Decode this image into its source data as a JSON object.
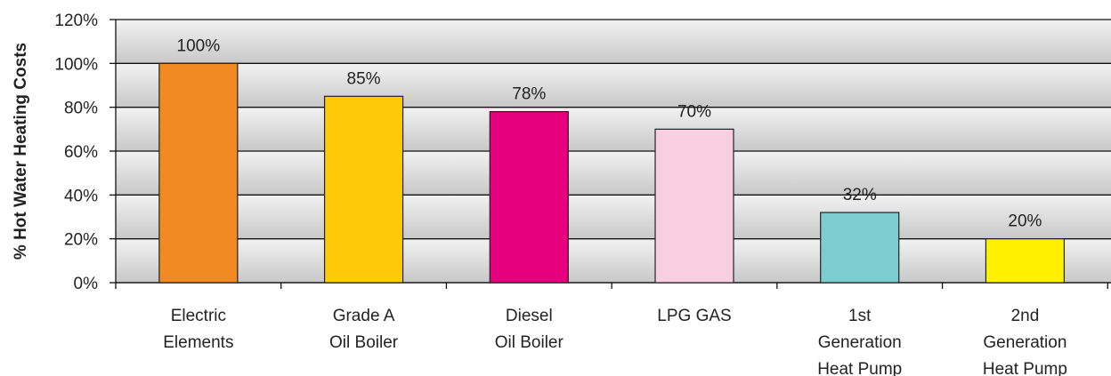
{
  "chart_data": {
    "type": "bar",
    "title": "",
    "xlabel": "",
    "ylabel": "% Hot Water Heating Costs",
    "ylim": [
      0,
      120
    ],
    "yticks": [
      0,
      20,
      40,
      60,
      80,
      100,
      120
    ],
    "ytick_labels": [
      "0%",
      "20%",
      "40%",
      "60%",
      "80%",
      "100%",
      "120%"
    ],
    "grid": true,
    "legend": "none",
    "categories": [
      [
        "Electric",
        "Elements"
      ],
      [
        "Grade A",
        "Oil Boiler"
      ],
      [
        "Diesel",
        "Oil Boiler"
      ],
      [
        "LPG GAS"
      ],
      [
        "1st",
        "Generation",
        "Heat Pump"
      ],
      [
        "2nd",
        "Generation",
        "Heat Pump"
      ]
    ],
    "values": [
      100,
      85,
      78,
      70,
      32,
      20
    ],
    "data_labels": [
      "100%",
      "85%",
      "78%",
      "70%",
      "32%",
      "20%"
    ],
    "colors": [
      "#F28A24",
      "#FFCA0A",
      "#E6007E",
      "#F8CFE0",
      "#7CCDD0",
      "#FFF000"
    ]
  }
}
